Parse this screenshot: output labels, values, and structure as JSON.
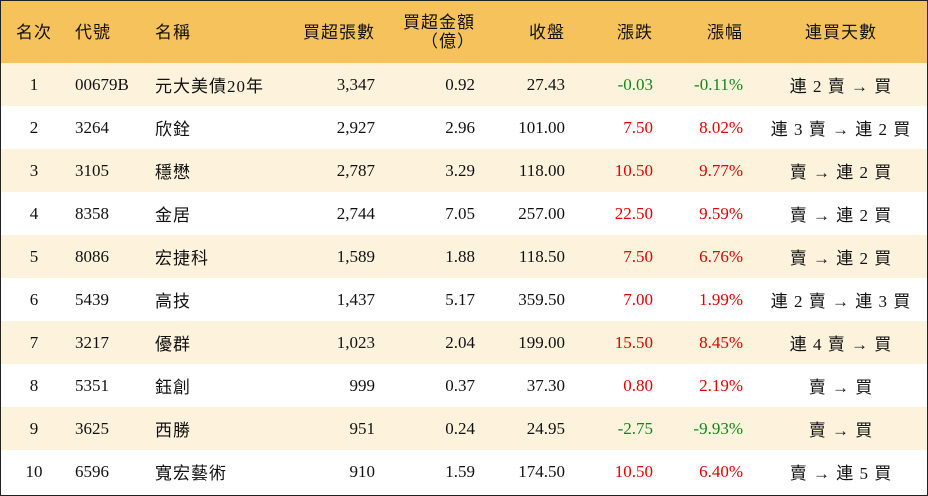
{
  "headers": {
    "rank": "名次",
    "code": "代號",
    "name": "名稱",
    "buy_lots": "買超張數",
    "buy_amount_line1": "買超金額",
    "buy_amount_line2": "（億）",
    "close": "收盤",
    "change": "漲跌",
    "change_pct": "漲幅",
    "streak": "連買天數"
  },
  "colors": {
    "header_bg": "#f6c25b",
    "stripe_bg": "#fdf3dc",
    "up": "#e00000",
    "down": "#11871a"
  },
  "rows": [
    {
      "rank": "1",
      "code": "00679B",
      "name": "元大美債20年",
      "buy_lots": "3,347",
      "buy_amount": "0.92",
      "close": "27.43",
      "change": "-0.03",
      "change_pct": "-0.11%",
      "direction": "down",
      "streak": "連 2 賣 → 買"
    },
    {
      "rank": "2",
      "code": "3264",
      "name": "欣銓",
      "buy_lots": "2,927",
      "buy_amount": "2.96",
      "close": "101.00",
      "change": "7.50",
      "change_pct": "8.02%",
      "direction": "up",
      "streak": "連 3 賣 → 連 2 買"
    },
    {
      "rank": "3",
      "code": "3105",
      "name": "穩懋",
      "buy_lots": "2,787",
      "buy_amount": "3.29",
      "close": "118.00",
      "change": "10.50",
      "change_pct": "9.77%",
      "direction": "up",
      "streak": "賣 → 連 2 買"
    },
    {
      "rank": "4",
      "code": "8358",
      "name": "金居",
      "buy_lots": "2,744",
      "buy_amount": "7.05",
      "close": "257.00",
      "change": "22.50",
      "change_pct": "9.59%",
      "direction": "up",
      "streak": "賣 → 連 2 買"
    },
    {
      "rank": "5",
      "code": "8086",
      "name": "宏捷科",
      "buy_lots": "1,589",
      "buy_amount": "1.88",
      "close": "118.50",
      "change": "7.50",
      "change_pct": "6.76%",
      "direction": "up",
      "streak": "賣 → 連 2 買"
    },
    {
      "rank": "6",
      "code": "5439",
      "name": "高技",
      "buy_lots": "1,437",
      "buy_amount": "5.17",
      "close": "359.50",
      "change": "7.00",
      "change_pct": "1.99%",
      "direction": "up",
      "streak": "連 2 賣 → 連 3 買"
    },
    {
      "rank": "7",
      "code": "3217",
      "name": "優群",
      "buy_lots": "1,023",
      "buy_amount": "2.04",
      "close": "199.00",
      "change": "15.50",
      "change_pct": "8.45%",
      "direction": "up",
      "streak": "連 4 賣 → 買"
    },
    {
      "rank": "8",
      "code": "5351",
      "name": "鈺創",
      "buy_lots": "999",
      "buy_amount": "0.37",
      "close": "37.30",
      "change": "0.80",
      "change_pct": "2.19%",
      "direction": "up",
      "streak": "賣 → 買"
    },
    {
      "rank": "9",
      "code": "3625",
      "name": "西勝",
      "buy_lots": "951",
      "buy_amount": "0.24",
      "close": "24.95",
      "change": "-2.75",
      "change_pct": "-9.93%",
      "direction": "down",
      "streak": "賣 → 買"
    },
    {
      "rank": "10",
      "code": "6596",
      "name": "寬宏藝術",
      "buy_lots": "910",
      "buy_amount": "1.59",
      "close": "174.50",
      "change": "10.50",
      "change_pct": "6.40%",
      "direction": "up",
      "streak": "賣 → 連 5 買"
    }
  ]
}
